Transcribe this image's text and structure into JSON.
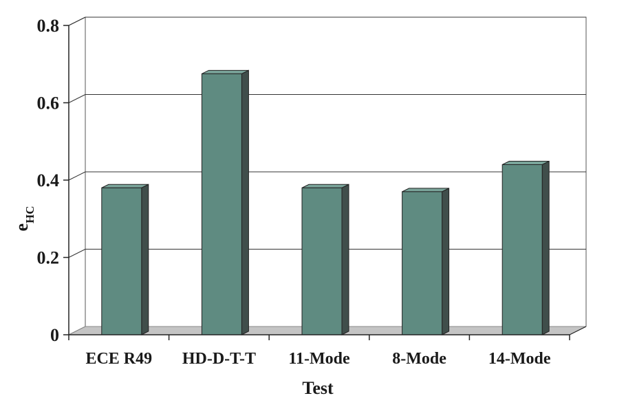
{
  "chart_data": {
    "type": "bar",
    "categories": [
      "ECE R49",
      "HD-D-T-T",
      "11-Mode",
      "8-Mode",
      "14-Mode"
    ],
    "values": [
      0.38,
      0.675,
      0.38,
      0.37,
      0.44
    ],
    "xlabel": "Test",
    "ylabel": "e",
    "ylabel_subscript": "HC",
    "ylim": [
      0,
      0.8
    ],
    "yticks": [
      "0",
      "0.2",
      "0.4",
      "0.6",
      "0.8"
    ],
    "grid": true,
    "three_d": true,
    "colors": {
      "bar_front": "#5f8b81",
      "bar_side": "#404e4b",
      "bar_top": "#7aa49a",
      "floor": "#c4c4c4",
      "gridline": "#333333",
      "axis": "#222222"
    }
  }
}
